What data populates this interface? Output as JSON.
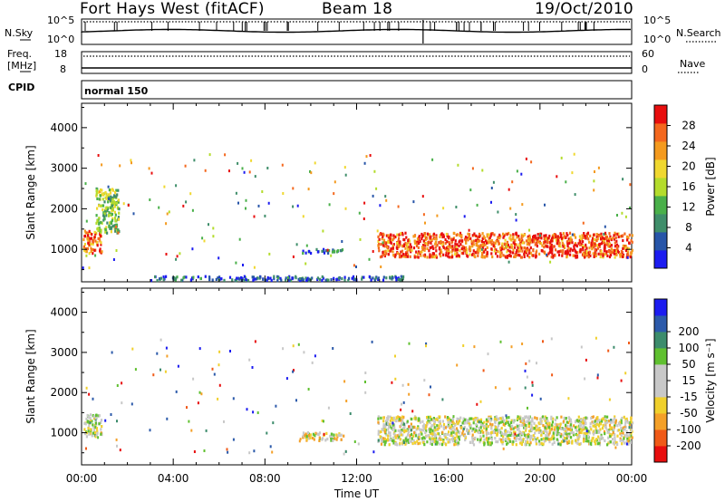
{
  "header": {
    "title": "Fort Hays West (fitACF)",
    "beam": "Beam 18",
    "date": "19/Oct/2010"
  },
  "noise_panel": {
    "left_label": "N.Sky",
    "right_label": "N.Search",
    "y_ticks": [
      "10^5",
      "10^0"
    ]
  },
  "freq_panel": {
    "left_label_line1": "Freq.",
    "left_label_line2": "[MHz]",
    "left_ticks": [
      "18",
      "8"
    ],
    "right_label": "Nave",
    "right_ticks": [
      "60",
      "0"
    ]
  },
  "cpid_panel": {
    "label": "CPID",
    "control_program": "normal 150"
  },
  "colors": {
    "power_scale": [
      "#1c1cf0",
      "#2755a8",
      "#3f8e6a",
      "#4ab04a",
      "#b4dc2c",
      "#f0d830",
      "#f49a1e",
      "#f4681e",
      "#e80e0e"
    ],
    "velocity_scale": [
      "#e80e0e",
      "#f05a18",
      "#f4a028",
      "#f0d02c",
      "#c8c8c8",
      "#c8c8c8",
      "#60c030",
      "#3c8c6c",
      "#2c5aaa",
      "#1c1cf0"
    ]
  },
  "chart_data": [
    {
      "type": "heatmap",
      "name": "power",
      "ylabel": "Slant Range [km]",
      "ylim": [
        200,
        4600
      ],
      "y_ticks": [
        1000,
        2000,
        3000,
        4000
      ],
      "xlim_hours": [
        0,
        24
      ],
      "colorbar": {
        "label": "Power [dB]",
        "ticks": [
          4,
          8,
          12,
          16,
          20,
          24,
          28
        ],
        "range": [
          0,
          32
        ]
      },
      "bands": [
        {
          "t0": 0.05,
          "t1": 0.85,
          "r0": 900,
          "r1": 1450,
          "level": 0.8
        },
        {
          "t0": 0.6,
          "t1": 1.6,
          "r0": 1400,
          "r1": 2500,
          "level": 0.45
        },
        {
          "t0": 9.6,
          "t1": 11.4,
          "r0": 900,
          "r1": 1000,
          "level": 0.25
        },
        {
          "t0": 12.9,
          "t1": 24,
          "r0": 800,
          "r1": 1400,
          "level": 0.85
        },
        {
          "t0": 3,
          "t1": 14,
          "r0": 230,
          "r1": 330,
          "level": 0.15
        }
      ]
    },
    {
      "type": "heatmap",
      "name": "velocity",
      "ylabel": "Slant Range [km]",
      "ylim": [
        200,
        4600
      ],
      "y_ticks": [
        1000,
        2000,
        3000,
        4000
      ],
      "xlim_hours": [
        0,
        24
      ],
      "colorbar": {
        "label": "Velocity [m s⁻¹]",
        "ticks": [
          -200,
          -100,
          -50,
          -15,
          15,
          50,
          100,
          200
        ]
      },
      "bands": [
        {
          "t0": 0.05,
          "t1": 0.85,
          "r0": 900,
          "r1": 1450,
          "level": 0.5
        },
        {
          "t0": 9.6,
          "t1": 11.4,
          "r0": 800,
          "r1": 1000,
          "level": 0.45
        },
        {
          "t0": 12.9,
          "t1": 24,
          "r0": 700,
          "r1": 1400,
          "level": 0.48
        }
      ]
    }
  ],
  "time_axis": {
    "label": "Time UT",
    "ticks": [
      "00:00",
      "04:00",
      "08:00",
      "12:00",
      "16:00",
      "20:00",
      "00:00"
    ]
  }
}
